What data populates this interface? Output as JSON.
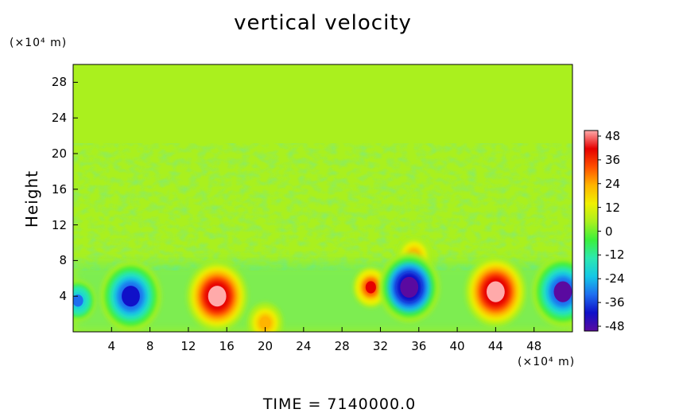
{
  "chart_data": {
    "type": "heatmap",
    "title": "vertical velocity",
    "ylabel": "Height",
    "xlabel": "",
    "x_unit": "(×10⁴ m)",
    "y_unit": "(×10⁴ m)",
    "xlim": [
      0,
      52
    ],
    "ylim": [
      0,
      30
    ],
    "x_ticks": [
      4,
      8,
      12,
      16,
      20,
      24,
      28,
      32,
      36,
      40,
      44,
      48
    ],
    "y_ticks": [
      4,
      8,
      12,
      16,
      20,
      24,
      28
    ],
    "colorbar": {
      "ticks": [
        48,
        36,
        24,
        12,
        0,
        -12,
        -24,
        -36,
        -48
      ],
      "range": [
        -48,
        48
      ],
      "colors": [
        "#5a0aa0",
        "#1010c8",
        "#1e6ef0",
        "#14c8e6",
        "#2ce8b0",
        "#3cf03c",
        "#aaf01e",
        "#f0f000",
        "#ffb400",
        "#ff5000",
        "#e60000",
        "#ffaaaa"
      ]
    },
    "background_value": 2,
    "features": [
      {
        "name": "updraft",
        "x": 44,
        "y": 4.5,
        "value": 48
      },
      {
        "name": "updraft",
        "x": 15,
        "y": 4,
        "value": 48
      },
      {
        "name": "updraft",
        "x": 31,
        "y": 5,
        "value": 36
      },
      {
        "name": "updraft",
        "x": 20,
        "y": 1,
        "value": 24
      },
      {
        "name": "updraft",
        "x": 35.5,
        "y": 8.5,
        "value": 24
      },
      {
        "name": "downdraft",
        "x": 6,
        "y": 4,
        "value": -40
      },
      {
        "name": "downdraft",
        "x": 35,
        "y": 5,
        "value": -48
      },
      {
        "name": "downdraft",
        "x": 51,
        "y": 4.5,
        "value": -44
      },
      {
        "name": "downdraft",
        "x": 0.5,
        "y": 3.5,
        "value": -30
      }
    ],
    "annotation": "TIME  =  7140000.0"
  }
}
